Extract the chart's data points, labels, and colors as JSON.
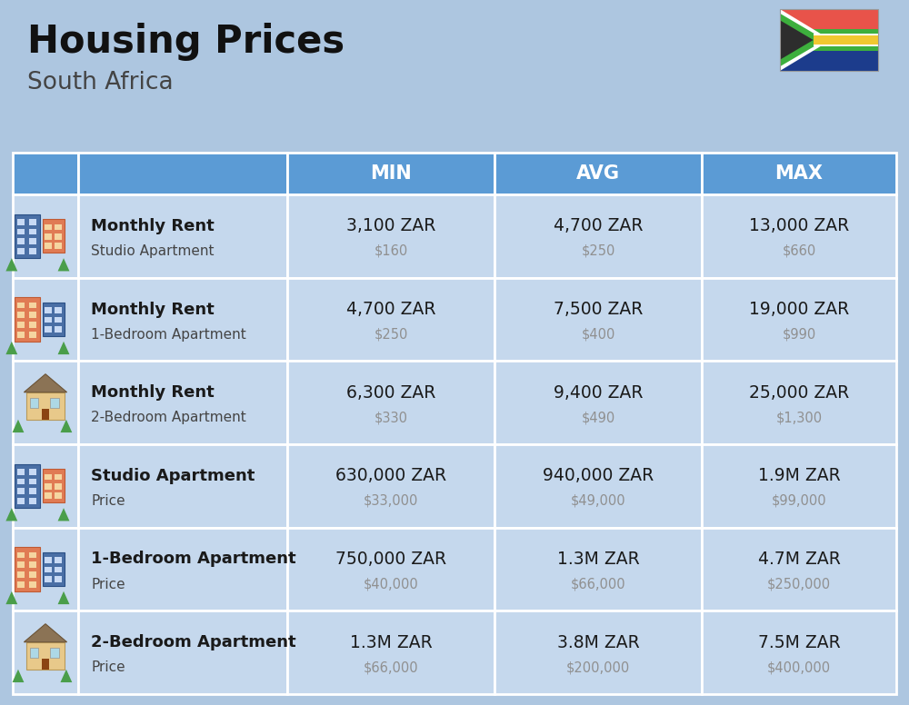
{
  "title": "Housing Prices",
  "subtitle": "South Africa",
  "background_color": "#adc6e0",
  "header_bg_color": "#5b9bd5",
  "header_text_color": "#ffffff",
  "row_bg_color": "#c5d8ed",
  "cell_border_color": "#ffffff",
  "col_headers": [
    "MIN",
    "AVG",
    "MAX"
  ],
  "rows": [
    {
      "label_bold": "Monthly Rent",
      "label_sub": "Studio Apartment",
      "min_main": "3,100 ZAR",
      "min_sub": "$160",
      "avg_main": "4,700 ZAR",
      "avg_sub": "$250",
      "max_main": "13,000 ZAR",
      "max_sub": "$660",
      "emoji": "studio_rent"
    },
    {
      "label_bold": "Monthly Rent",
      "label_sub": "1-Bedroom Apartment",
      "min_main": "4,700 ZAR",
      "min_sub": "$250",
      "avg_main": "7,500 ZAR",
      "avg_sub": "$400",
      "max_main": "19,000 ZAR",
      "max_sub": "$990",
      "emoji": "onebr_rent"
    },
    {
      "label_bold": "Monthly Rent",
      "label_sub": "2-Bedroom Apartment",
      "min_main": "6,300 ZAR",
      "min_sub": "$330",
      "avg_main": "9,400 ZAR",
      "avg_sub": "$490",
      "max_main": "25,000 ZAR",
      "max_sub": "$1,300",
      "emoji": "twobr_rent"
    },
    {
      "label_bold": "Studio Apartment",
      "label_sub": "Price",
      "min_main": "630,000 ZAR",
      "min_sub": "$33,000",
      "avg_main": "940,000 ZAR",
      "avg_sub": "$49,000",
      "max_main": "1.9M ZAR",
      "max_sub": "$99,000",
      "emoji": "studio_price"
    },
    {
      "label_bold": "1-Bedroom Apartment",
      "label_sub": "Price",
      "min_main": "750,000 ZAR",
      "min_sub": "$40,000",
      "avg_main": "1.3M ZAR",
      "avg_sub": "$66,000",
      "max_main": "4.7M ZAR",
      "max_sub": "$250,000",
      "emoji": "onebr_price"
    },
    {
      "label_bold": "2-Bedroom Apartment",
      "label_sub": "Price",
      "min_main": "1.3M ZAR",
      "min_sub": "$66,000",
      "avg_main": "3.8M ZAR",
      "avg_sub": "$200,000",
      "max_main": "7.5M ZAR",
      "max_sub": "$400,000",
      "emoji": "twobr_price"
    }
  ]
}
